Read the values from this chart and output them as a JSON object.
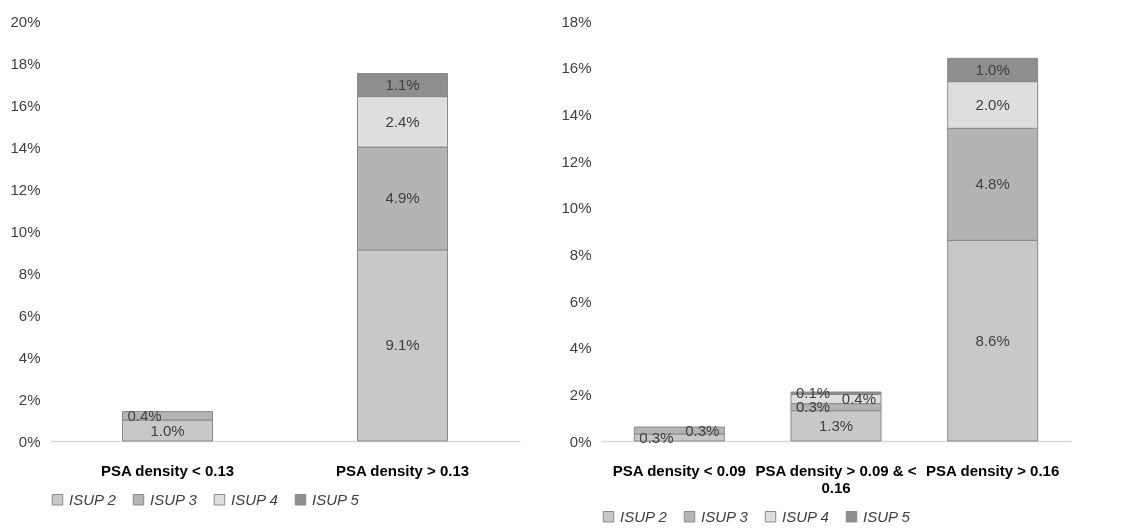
{
  "chart_data": [
    {
      "type": "bar",
      "stacked": true,
      "categories": [
        "PSA density < 0.13",
        "PSA density > 0.13"
      ],
      "ylim": [
        0,
        20
      ],
      "yticks": [
        {
          "value": 0,
          "label": "0%"
        },
        {
          "value": 2,
          "label": "2%"
        },
        {
          "value": 4,
          "label": "4%"
        },
        {
          "value": 6,
          "label": "6%"
        },
        {
          "value": 8,
          "label": "8%"
        },
        {
          "value": 10,
          "label": "10%"
        },
        {
          "value": 12,
          "label": "12%"
        },
        {
          "value": 14,
          "label": "14%"
        },
        {
          "value": 16,
          "label": "16%"
        },
        {
          "value": 18,
          "label": "18%"
        },
        {
          "value": 20,
          "label": "20%"
        }
      ],
      "grid": false,
      "legend": "bottom",
      "series": [
        {
          "name": "ISUP 2",
          "color": "#c8c8c8",
          "values": [
            1.0,
            9.1
          ],
          "value_labels": [
            "1.0%",
            "9.1%"
          ]
        },
        {
          "name": "ISUP 3",
          "color": "#b4b4b4",
          "values": [
            0.4,
            4.9
          ],
          "value_labels": [
            "0.4%",
            "4.9%"
          ]
        },
        {
          "name": "ISUP 4",
          "color": "#dedede",
          "values": [
            null,
            2.4
          ],
          "value_labels": [
            null,
            "2.4%"
          ]
        },
        {
          "name": "ISUP 5",
          "color": "#8e8e8e",
          "values": [
            null,
            1.1
          ],
          "value_labels": [
            null,
            "1.1%"
          ]
        }
      ]
    },
    {
      "type": "bar",
      "stacked": true,
      "categories": [
        "PSA density < 0.09",
        "PSA density > 0.09 & < 0.16",
        "PSA density > 0.16"
      ],
      "ylim": [
        0,
        18
      ],
      "yticks": [
        {
          "value": 0,
          "label": "0%"
        },
        {
          "value": 2,
          "label": "2%"
        },
        {
          "value": 4,
          "label": "4%"
        },
        {
          "value": 6,
          "label": "6%"
        },
        {
          "value": 8,
          "label": "8%"
        },
        {
          "value": 10,
          "label": "10%"
        },
        {
          "value": 12,
          "label": "12%"
        },
        {
          "value": 14,
          "label": "14%"
        },
        {
          "value": 16,
          "label": "16%"
        },
        {
          "value": 18,
          "label": "18%"
        }
      ],
      "grid": false,
      "legend": "bottom",
      "series": [
        {
          "name": "ISUP 2",
          "color": "#c8c8c8",
          "values": [
            0.3,
            1.3,
            8.6
          ],
          "value_labels": [
            "0.3%",
            "1.3%",
            "8.6%"
          ]
        },
        {
          "name": "ISUP 3",
          "color": "#b4b4b4",
          "values": [
            0.3,
            0.3,
            4.8
          ],
          "value_labels": [
            "0.3%",
            "0.3%",
            "4.8%"
          ]
        },
        {
          "name": "ISUP 4",
          "color": "#dedede",
          "values": [
            null,
            0.4,
            2.0
          ],
          "value_labels": [
            null,
            "0.4%",
            "2.0%"
          ]
        },
        {
          "name": "ISUP 5",
          "color": "#8e8e8e",
          "values": [
            null,
            0.1,
            1.0
          ],
          "value_labels": [
            null,
            "0.1%",
            "1.0%"
          ]
        }
      ]
    }
  ]
}
